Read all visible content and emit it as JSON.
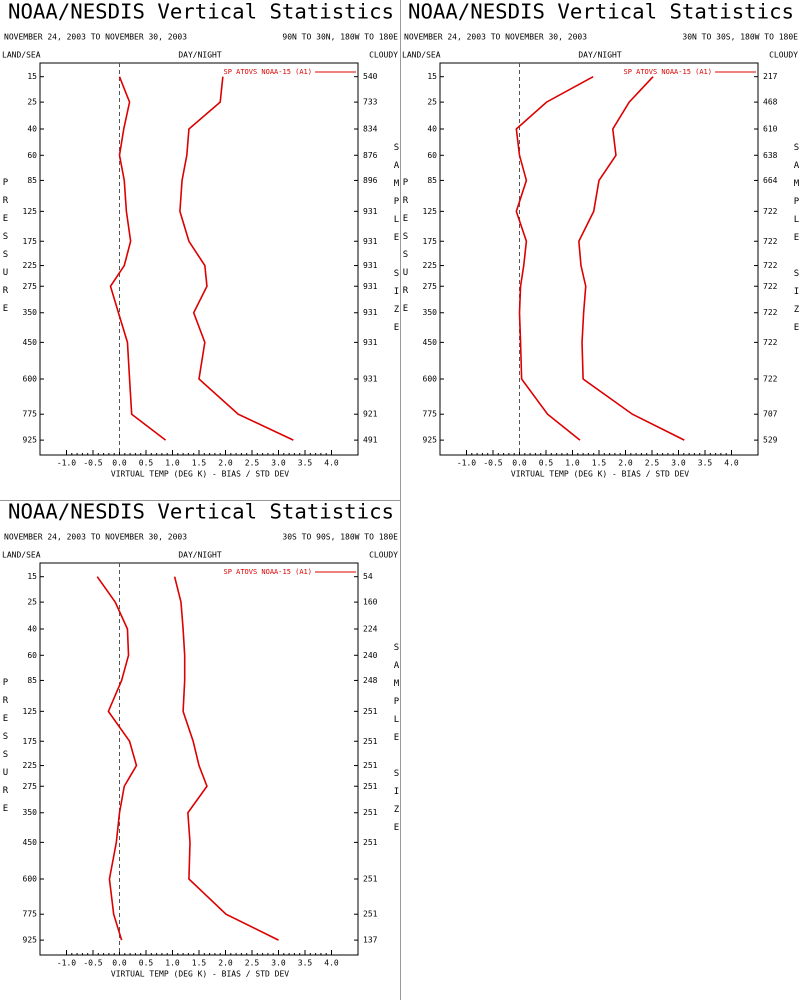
{
  "chart_data": [
    {
      "type": "line",
      "title": "NOAA/NESDIS Vertical Statistics",
      "subtitle": "NOVEMBER 24, 2003 TO NOVEMBER 30, 2003",
      "region": "90N TO 30N, 180W TO 180E",
      "land_sea": "LAND/SEA",
      "day_night": "DAY/NIGHT",
      "cloudy": "CLOUDY",
      "y_label": "PRESSURE",
      "y2_label": "SAMPLE SIZE",
      "x_label": "VIRTUAL TEMP (DEG K) - BIAS / STD DEV",
      "xlim": [
        -1.5,
        4.5
      ],
      "xticks": [
        {
          "value": -1,
          "label": "-1.0"
        },
        -0.5,
        {
          "value": 0,
          "label": "0.0"
        },
        0.5,
        {
          "value": 1,
          "label": "1.0"
        },
        1.5,
        {
          "value": 2,
          "label": "2.0"
        },
        2.5,
        {
          "value": 3,
          "label": "3.0"
        },
        3.5,
        {
          "value": 4,
          "label": "4.0"
        }
      ],
      "ylim": [
        11,
        1020
      ],
      "yticks": [
        15,
        25,
        40,
        60,
        85,
        125,
        175,
        225,
        275,
        350,
        450,
        600,
        775,
        925
      ],
      "reference_line": 0,
      "sample_size": [
        540,
        733,
        834,
        876,
        896,
        931,
        931,
        931,
        931,
        931,
        931,
        931,
        921,
        491
      ],
      "series": [
        {
          "name": "SP ATOVS NOAA-15 (A1)",
          "color": "#dd0000",
          "bias": [
            0.0,
            0.19,
            0.08,
            0.0,
            0.09,
            0.13,
            0.21,
            0.09,
            -0.17,
            -0.02,
            0.15,
            0.19,
            0.23,
            0.87
          ],
          "std_dev": [
            1.95,
            1.9,
            1.31,
            1.27,
            1.18,
            1.14,
            1.31,
            1.61,
            1.65,
            1.4,
            1.61,
            1.5,
            2.24,
            3.28
          ]
        }
      ]
    },
    {
      "type": "line",
      "title": "NOAA/NESDIS Vertical Statistics",
      "subtitle": "NOVEMBER 24, 2003 TO NOVEMBER 30, 2003",
      "region": "30N TO 30S, 180W TO 180E",
      "land_sea": "LAND/SEA",
      "day_night": "DAY/NIGHT",
      "cloudy": "CLOUDY",
      "y_label": "PRESSURE",
      "y2_label": "SAMPLE SIZE",
      "x_label": "VIRTUAL TEMP (DEG K) - BIAS / STD DEV",
      "xlim": [
        -1.5,
        4.5
      ],
      "xticks": [
        {
          "value": -1,
          "label": "-1.0"
        },
        -0.5,
        {
          "value": 0,
          "label": "0.0"
        },
        0.5,
        {
          "value": 1,
          "label": "1.0"
        },
        1.5,
        {
          "value": 2,
          "label": "2.0"
        },
        2.5,
        {
          "value": 3,
          "label": "3.0"
        },
        3.5,
        {
          "value": 4,
          "label": "4.0"
        }
      ],
      "ylim": [
        11,
        1020
      ],
      "yticks": [
        15,
        25,
        40,
        60,
        85,
        125,
        175,
        225,
        275,
        350,
        450,
        600,
        775,
        925
      ],
      "reference_line": 0,
      "sample_size": [
        217,
        468,
        610,
        638,
        664,
        722,
        722,
        722,
        722,
        722,
        722,
        722,
        707,
        529
      ],
      "series": [
        {
          "name": "SP ATOVS NOAA-15 (A1)",
          "color": "#dd0000",
          "bias": [
            1.39,
            0.51,
            -0.06,
            0.0,
            0.13,
            -0.06,
            0.13,
            0.08,
            0.02,
            0.0,
            0.02,
            0.04,
            0.53,
            1.14
          ],
          "std_dev": [
            2.52,
            2.07,
            1.76,
            1.82,
            1.5,
            1.4,
            1.12,
            1.16,
            1.25,
            1.21,
            1.18,
            1.2,
            2.13,
            3.11
          ]
        }
      ]
    },
    {
      "type": "line",
      "title": "NOAA/NESDIS Vertical Statistics",
      "subtitle": "NOVEMBER 24, 2003 TO NOVEMBER 30, 2003",
      "region": "30S TO 90S, 180W TO 180E",
      "land_sea": "LAND/SEA",
      "day_night": "DAY/NIGHT",
      "cloudy": "CLOUDY",
      "y_label": "PRESSURE",
      "y2_label": "SAMPLE SIZE",
      "x_label": "VIRTUAL TEMP (DEG K) - BIAS / STD DEV",
      "xlim": [
        -1.5,
        4.5
      ],
      "xticks": [
        {
          "value": -1,
          "label": "-1.0"
        },
        -0.5,
        {
          "value": 0,
          "label": "0.0"
        },
        0.5,
        {
          "value": 1,
          "label": "1.0"
        },
        1.5,
        {
          "value": 2,
          "label": "2.0"
        },
        2.5,
        {
          "value": 3,
          "label": "3.0"
        },
        3.5,
        {
          "value": 4,
          "label": "4.0"
        }
      ],
      "ylim": [
        11,
        1020
      ],
      "yticks": [
        15,
        25,
        40,
        60,
        85,
        125,
        175,
        225,
        275,
        350,
        450,
        600,
        775,
        925
      ],
      "reference_line": 0,
      "sample_size": [
        54,
        160,
        224,
        240,
        248,
        251,
        251,
        251,
        251,
        251,
        251,
        251,
        251,
        137
      ],
      "series": [
        {
          "name": "SP ATOVS NOAA-15 (A1)",
          "color": "#dd0000",
          "bias": [
            -0.42,
            -0.08,
            0.15,
            0.17,
            0.04,
            -0.21,
            0.19,
            0.32,
            0.09,
            0.0,
            -0.06,
            -0.19,
            -0.11,
            0.04
          ],
          "std_dev": [
            1.04,
            1.16,
            1.2,
            1.23,
            1.23,
            1.2,
            1.39,
            1.5,
            1.65,
            1.29,
            1.33,
            1.31,
            2.01,
            3.0
          ]
        }
      ]
    }
  ]
}
